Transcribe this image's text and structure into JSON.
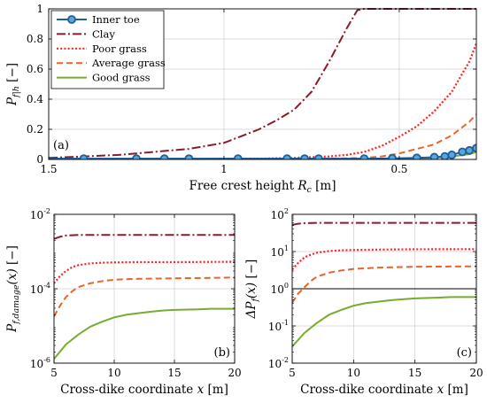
{
  "colors": {
    "inner_toe": "#1f5f9e",
    "inner_toe_fill": "#5aa6d8",
    "clay": "#8b1a2b",
    "poor_grass": "#ff2020",
    "average_grass": "#e8642c",
    "good_grass": "#77ac30",
    "axis": "#000000",
    "grid": "#cfcfcf"
  },
  "chart_data": [
    {
      "id": "a",
      "type": "line",
      "panel_label": "(a)",
      "xlabel_main": "Free crest height ",
      "xlabel_var": "R",
      "xlabel_sub": "c",
      "xlabel_unit": " [m]",
      "ylabel_main": "P",
      "ylabel_sub": "f|h",
      "ylabel_unit": " [−]",
      "x_reversed": true,
      "xlim": [
        1.5,
        0.28
      ],
      "ylim": [
        0,
        1
      ],
      "xticks": [
        1.5,
        1,
        0.5
      ],
      "xtick_labels": [
        "1.5",
        "1",
        "0.5"
      ],
      "yticks": [
        0,
        0.2,
        0.4,
        0.6,
        0.8,
        1
      ],
      "ytick_labels": [
        "0",
        "0.2",
        "0.4",
        "0.6",
        "0.8",
        "1"
      ],
      "grid": true,
      "legend_position": "top-left",
      "series": [
        {
          "name": "Inner toe",
          "key": "inner_toe",
          "style": "solid-marker",
          "x": [
            1.5,
            1.4,
            1.25,
            1.17,
            1.1,
            1.0,
            0.9,
            0.85,
            0.8,
            0.75,
            0.7,
            0.65,
            0.6,
            0.55,
            0.5,
            0.45,
            0.4,
            0.37,
            0.35,
            0.32,
            0.3,
            0.28
          ],
          "y": [
            0.005,
            0.005,
            0.005,
            0.005,
            0.005,
            0.005,
            0.005,
            0.005,
            0.005,
            0.005,
            0.005,
            0.005,
            0.005,
            0.006,
            0.008,
            0.01,
            0.015,
            0.02,
            0.03,
            0.05,
            0.06,
            0.075
          ],
          "marker_x": [
            1.4,
            1.25,
            1.17,
            1.1,
            0.96,
            0.82,
            0.77,
            0.73,
            0.6,
            0.52,
            0.45,
            0.4,
            0.37,
            0.35,
            0.32,
            0.3,
            0.28
          ]
        },
        {
          "name": "Clay",
          "key": "clay",
          "style": "dashdot",
          "x": [
            1.5,
            1.4,
            1.3,
            1.2,
            1.1,
            1.0,
            0.9,
            0.85,
            0.8,
            0.75,
            0.7,
            0.65,
            0.62,
            0.6,
            0.55,
            0.5,
            0.4,
            0.28
          ],
          "y": [
            0.01,
            0.02,
            0.03,
            0.05,
            0.07,
            0.11,
            0.2,
            0.26,
            0.33,
            0.45,
            0.65,
            0.87,
            0.99,
            1.0,
            1.0,
            1.0,
            1.0,
            1.0
          ]
        },
        {
          "name": "Poor grass",
          "key": "poor_grass",
          "style": "dotted",
          "x": [
            1.5,
            1.3,
            1.1,
            1.0,
            0.9,
            0.8,
            0.7,
            0.65,
            0.6,
            0.55,
            0.5,
            0.45,
            0.4,
            0.35,
            0.3,
            0.28
          ],
          "y": [
            0.0,
            0.0,
            0.0,
            0.005,
            0.005,
            0.01,
            0.02,
            0.03,
            0.05,
            0.09,
            0.15,
            0.22,
            0.32,
            0.45,
            0.65,
            0.77
          ]
        },
        {
          "name": "Average grass",
          "key": "average_grass",
          "style": "dashed",
          "x": [
            1.5,
            1.3,
            1.1,
            0.9,
            0.7,
            0.6,
            0.55,
            0.5,
            0.45,
            0.4,
            0.35,
            0.3,
            0.28
          ],
          "y": [
            0.0,
            0.0,
            0.0,
            0.0,
            0.005,
            0.01,
            0.02,
            0.04,
            0.07,
            0.1,
            0.16,
            0.25,
            0.3
          ]
        },
        {
          "name": "Good grass",
          "key": "good_grass",
          "style": "solid",
          "x": [
            1.5,
            1.1,
            0.8,
            0.6,
            0.5,
            0.45,
            0.4,
            0.35,
            0.3,
            0.28
          ],
          "y": [
            0.0,
            0.0,
            0.0,
            0.0,
            0.003,
            0.006,
            0.01,
            0.02,
            0.035,
            0.05
          ]
        }
      ]
    },
    {
      "id": "b",
      "type": "line",
      "panel_label": "(b)",
      "xlabel_main": "Cross-dike coordinate ",
      "xlabel_var": "x",
      "xlabel_unit": " [m]",
      "ylabel_main": "P",
      "ylabel_sub": "f,damage",
      "ylabel_arg": "(x)",
      "ylabel_unit": " [−]",
      "log_y": true,
      "xlim": [
        5,
        20
      ],
      "ylim": [
        1e-06,
        0.01
      ],
      "xticks": [
        5,
        10,
        15,
        20
      ],
      "xtick_labels": [
        "5",
        "10",
        "15",
        "20"
      ],
      "ytick_exponents": [
        -6,
        -4,
        -2
      ],
      "ytick_labels": [
        "10",
        "10",
        "10"
      ],
      "ytick_sup": [
        "-6",
        "-4",
        "-2"
      ],
      "grid": true,
      "series": [
        {
          "name": "Clay",
          "key": "clay",
          "style": "dashdot",
          "x": [
            5,
            5.5,
            6,
            7,
            8,
            10,
            12,
            15,
            20
          ],
          "y": [
            0.0022,
            0.0025,
            0.0027,
            0.0028,
            0.0028,
            0.0028,
            0.0028,
            0.0028,
            0.0028
          ]
        },
        {
          "name": "Poor grass",
          "key": "poor_grass",
          "style": "dotted",
          "x": [
            5,
            5.5,
            6,
            6.5,
            7,
            8,
            9,
            10,
            12,
            15,
            20
          ],
          "y": [
            0.00014,
            0.00022,
            0.0003,
            0.00038,
            0.00043,
            0.00048,
            0.0005,
            0.00051,
            0.00052,
            0.00052,
            0.00053
          ]
        },
        {
          "name": "Average grass",
          "key": "average_grass",
          "style": "dashed",
          "x": [
            5,
            5.5,
            6,
            6.5,
            7,
            8,
            9,
            10,
            12,
            15,
            20
          ],
          "y": [
            1.8e-05,
            3.5e-05,
            6e-05,
            8.5e-05,
            0.00011,
            0.00014,
            0.00016,
            0.000175,
            0.000185,
            0.00019,
            0.0002
          ]
        },
        {
          "name": "Good grass",
          "key": "good_grass",
          "style": "solid",
          "x": [
            5,
            6,
            7,
            8,
            9,
            10,
            11,
            12,
            13,
            14,
            15,
            17,
            18,
            20
          ],
          "y": [
            1.3e-06,
            3.2e-06,
            5.8e-06,
            9.5e-06,
            1.3e-05,
            1.7e-05,
            2e-05,
            2.2e-05,
            2.4e-05,
            2.6e-05,
            2.7e-05,
            2.8e-05,
            2.9e-05,
            2.9e-05
          ]
        }
      ]
    },
    {
      "id": "c",
      "type": "line",
      "panel_label": "(c)",
      "xlabel_main": "Cross-dike coordinate ",
      "xlabel_var": "x",
      "xlabel_unit": " [m]",
      "ylabel_main": "ΔP",
      "ylabel_sub": "f",
      "ylabel_arg": "(x)",
      "ylabel_unit": " [−]",
      "log_y": true,
      "xlim": [
        5,
        20
      ],
      "ylim": [
        0.01,
        100
      ],
      "xticks": [
        5,
        10,
        15,
        20
      ],
      "xtick_labels": [
        "5",
        "10",
        "15",
        "20"
      ],
      "ytick_exponents": [
        -2,
        -1,
        0,
        1,
        2
      ],
      "ytick_labels": [
        "10",
        "10",
        "10",
        "10",
        "10"
      ],
      "ytick_sup": [
        "-2",
        "-1",
        "0",
        "1",
        "2"
      ],
      "reference_line": 1,
      "grid": true,
      "series": [
        {
          "name": "Clay",
          "key": "clay",
          "style": "dashdot",
          "x": [
            5,
            5.5,
            6,
            7,
            8,
            10,
            12,
            15,
            20
          ],
          "y": [
            52,
            56,
            58,
            59,
            59,
            59,
            59,
            59,
            59
          ]
        },
        {
          "name": "Poor grass",
          "key": "poor_grass",
          "style": "dotted",
          "x": [
            5,
            5.5,
            6,
            6.5,
            7,
            8,
            9,
            10,
            12,
            15,
            20
          ],
          "y": [
            3.3,
            5,
            7,
            8.2,
            9.3,
            10.3,
            10.8,
            11,
            11.3,
            11.5,
            11.6
          ]
        },
        {
          "name": "Average grass",
          "key": "average_grass",
          "style": "dashed",
          "x": [
            5,
            5.5,
            6,
            6.5,
            7,
            8,
            9,
            10,
            12,
            15,
            20
          ],
          "y": [
            0.42,
            0.75,
            1.1,
            1.6,
            2.1,
            2.7,
            3.1,
            3.4,
            3.7,
            3.9,
            4.0
          ]
        },
        {
          "name": "Good grass",
          "key": "good_grass",
          "style": "solid",
          "x": [
            5,
            6,
            7,
            8,
            9,
            10,
            11,
            12,
            13,
            14,
            15,
            17,
            18,
            20
          ],
          "y": [
            0.028,
            0.065,
            0.12,
            0.2,
            0.27,
            0.35,
            0.41,
            0.45,
            0.49,
            0.52,
            0.55,
            0.58,
            0.6,
            0.6
          ]
        }
      ]
    }
  ]
}
